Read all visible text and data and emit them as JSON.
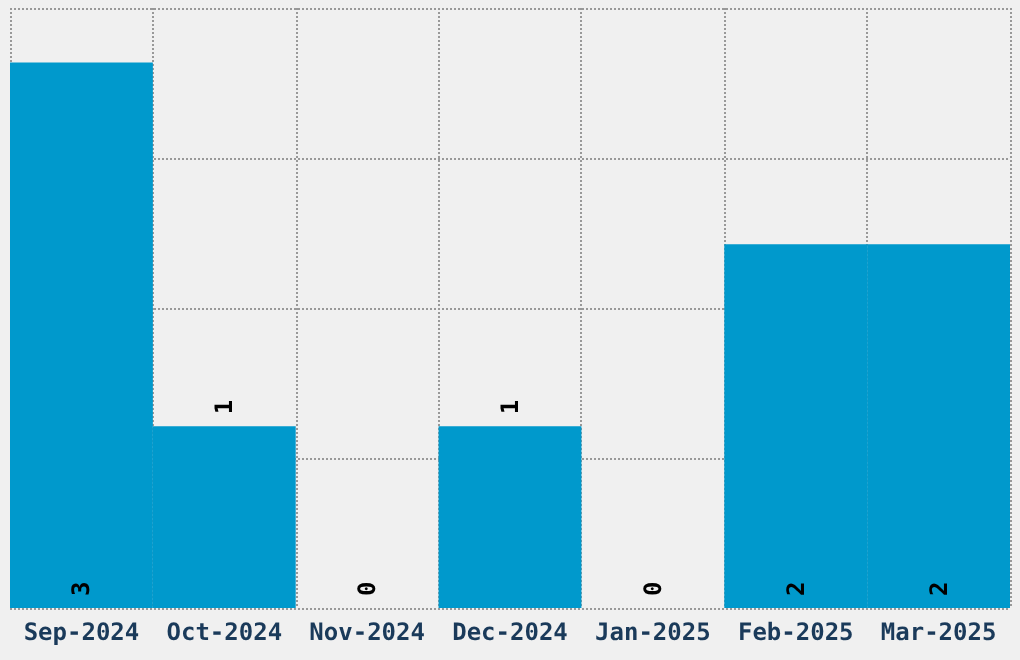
{
  "chart_data": {
    "type": "bar",
    "categories": [
      "Sep-2024",
      "Oct-2024",
      "Nov-2024",
      "Dec-2024",
      "Jan-2025",
      "Feb-2025",
      "Mar-2025"
    ],
    "values": [
      3,
      1,
      0,
      1,
      0,
      2,
      2
    ],
    "color": "#0099cc",
    "ylim": [
      0,
      3.3
    ],
    "yticks": [
      {
        "value": 0,
        "label": null
      },
      {
        "value": 0.825,
        "label": null
      },
      {
        "value": 1.65,
        "label": null
      },
      {
        "value": 2.475,
        "label": null
      },
      {
        "value": 3.3,
        "label": null
      }
    ],
    "tick_labels": "x",
    "data_labels": true,
    "grid": true
  }
}
